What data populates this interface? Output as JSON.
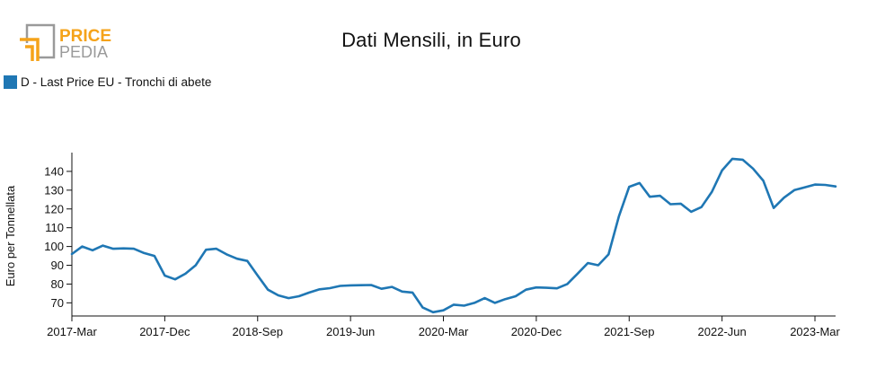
{
  "header": {
    "logo_line1": "PRICE",
    "logo_line2": "PEDIA"
  },
  "colors": {
    "series": "#1f77b4",
    "logo_orange": "#f5a31a",
    "logo_gray": "#9a9a9a"
  },
  "chart_data": {
    "type": "line",
    "title": "Dati Mensili, in Euro",
    "ylabel": "Euro per Tonnellata",
    "xlabel": "",
    "ylim": [
      63,
      150
    ],
    "yticks": [
      70,
      80,
      90,
      100,
      110,
      120,
      130,
      140
    ],
    "xticks": [
      "2017-Mar",
      "2017-Dec",
      "2018-Sep",
      "2019-Jun",
      "2020-Mar",
      "2020-Dec",
      "2021-Sep",
      "2022-Jun",
      "2023-Mar"
    ],
    "grid": false,
    "legend_position": "top-left",
    "series": [
      {
        "name": "D - Last Price EU - Tronchi di abete",
        "start": "2017-Mar",
        "values": [
          96,
          100,
          98,
          100.5,
          98.8,
          99,
          98.8,
          96.5,
          95,
          84.5,
          82.5,
          85.5,
          90,
          98.3,
          98.8,
          95.8,
          93.5,
          92.3,
          84.5,
          77,
          74,
          72.5,
          73.5,
          75.5,
          77.2,
          77.8,
          79,
          79.3,
          79.4,
          79.5,
          77.5,
          78.5,
          76,
          75.5,
          67.5,
          65,
          66,
          69,
          68.5,
          70,
          72.5,
          70,
          72,
          73.5,
          77,
          78.2,
          78,
          77.7,
          80,
          85.5,
          91.2,
          90,
          95.8,
          116,
          131.8,
          133.8,
          126.5,
          127,
          122.5,
          122.8,
          118.5,
          121,
          129,
          140.5,
          146.7,
          146.2,
          141.5,
          135,
          120.5,
          126,
          130,
          131.5,
          133,
          132.8,
          132
        ]
      }
    ]
  }
}
